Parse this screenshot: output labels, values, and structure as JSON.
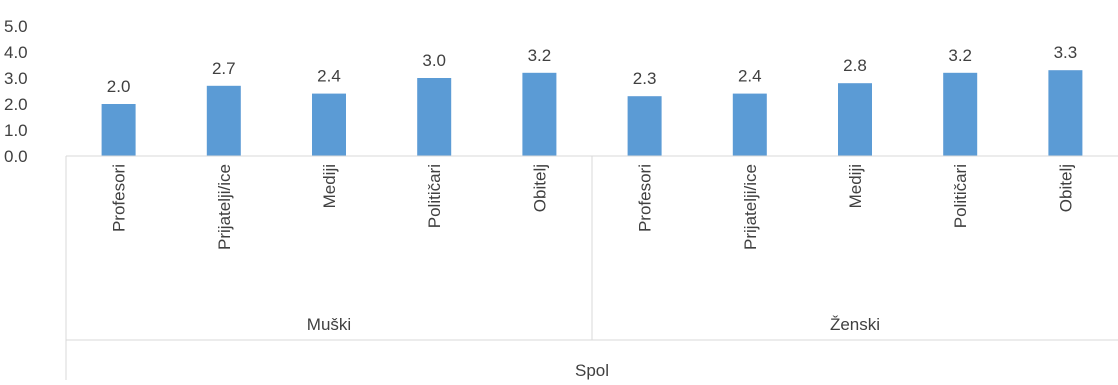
{
  "chart_data": {
    "type": "bar",
    "title": "",
    "xlabel": "Spol",
    "ylabel": "",
    "ylim": [
      0,
      5
    ],
    "y_ticks": [
      "0.0",
      "1.0",
      "2.0",
      "3.0",
      "4.0",
      "5.0"
    ],
    "groups": [
      {
        "name": "Muški",
        "categories": [
          "Profesori",
          "Prijatelji/ice",
          "Mediji",
          "Političari",
          "Obitelj"
        ],
        "values": [
          2.0,
          2.7,
          2.4,
          3.0,
          3.2
        ],
        "labels": [
          "2.0",
          "2.7",
          "2.4",
          "3.0",
          "3.2"
        ]
      },
      {
        "name": "Ženski",
        "categories": [
          "Profesori",
          "Prijatelji/ice",
          "Mediji",
          "Političari",
          "Obitelj"
        ],
        "values": [
          2.3,
          2.4,
          2.8,
          3.2,
          3.3
        ],
        "labels": [
          "2.3",
          "2.4",
          "2.8",
          "3.2",
          "3.3"
        ]
      }
    ],
    "grid": false,
    "legend": "none",
    "bar_color": "#5B9BD5"
  }
}
